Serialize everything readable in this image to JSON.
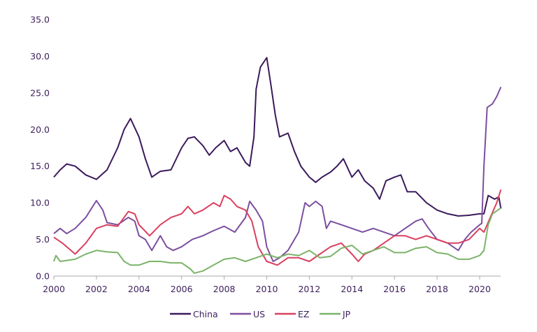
{
  "chart_data": {
    "type": "line",
    "title": "",
    "xlabel": "",
    "ylabel": "",
    "xlim": [
      2000,
      2021
    ],
    "ylim": [
      0,
      35
    ],
    "grid": false,
    "legend_position": "bottom",
    "x_ticks": [
      "2000",
      "2002",
      "2004",
      "2006",
      "2008",
      "2010",
      "2012",
      "2014",
      "2016",
      "2018",
      "2020"
    ],
    "y_ticks": [
      "0.0",
      "5.0",
      "10.0",
      "15.0",
      "20.0",
      "25.0",
      "30.0",
      "35.0"
    ],
    "series": [
      {
        "name": "China",
        "color": "#3b1a5c",
        "x": [
          2000,
          2000.3,
          2000.6,
          2001,
          2001.5,
          2002,
          2002.5,
          2003,
          2003.3,
          2003.6,
          2004,
          2004.3,
          2004.6,
          2005,
          2005.5,
          2006,
          2006.3,
          2006.6,
          2007,
          2007.3,
          2007.6,
          2008,
          2008.3,
          2008.6,
          2009,
          2009.2,
          2009.4,
          2009.5,
          2009.7,
          2010,
          2010.2,
          2010.4,
          2010.6,
          2011,
          2011.3,
          2011.6,
          2012,
          2012.3,
          2012.6,
          2013,
          2013.3,
          2013.6,
          2014,
          2014.3,
          2014.6,
          2015,
          2015.3,
          2015.6,
          2016,
          2016.3,
          2016.6,
          2017,
          2017.5,
          2018,
          2018.5,
          2019,
          2019.5,
          2020,
          2020.2,
          2020.4,
          2020.7,
          2020.9,
          2021
        ],
        "y": [
          13.5,
          14.5,
          15.3,
          15,
          13.8,
          13.2,
          14.5,
          17.5,
          20,
          21.5,
          19,
          16,
          13.5,
          14.3,
          14.5,
          17.5,
          18.8,
          19,
          17.8,
          16.5,
          17.5,
          18.5,
          17,
          17.5,
          15.5,
          15,
          19,
          25.5,
          28.5,
          29.8,
          26,
          22,
          19,
          19.5,
          17,
          15,
          13.5,
          12.8,
          13.5,
          14.2,
          15,
          16,
          13.5,
          14.5,
          13,
          12,
          10.5,
          13,
          13.5,
          13.8,
          11.5,
          11.5,
          10,
          9,
          8.5,
          8.2,
          8.3,
          8.5,
          8.5,
          11,
          10.5,
          10.8,
          9.2
        ]
      },
      {
        "name": "US",
        "color": "#7b4fa0",
        "x": [
          2000,
          2000.3,
          2000.6,
          2001,
          2001.5,
          2002,
          2002.3,
          2002.5,
          2003,
          2003.5,
          2003.8,
          2004,
          2004.3,
          2004.6,
          2005,
          2005.3,
          2005.6,
          2006,
          2006.5,
          2007,
          2007.5,
          2008,
          2008.5,
          2009,
          2009.2,
          2009.5,
          2009.8,
          2010,
          2010.3,
          2010.6,
          2011,
          2011.5,
          2011.8,
          2012,
          2012.3,
          2012.6,
          2012.8,
          2013,
          2013.5,
          2014,
          2014.5,
          2015,
          2015.5,
          2016,
          2016.5,
          2017,
          2017.3,
          2017.6,
          2018,
          2018.5,
          2019,
          2019.3,
          2019.6,
          2020,
          2020.1,
          2020.2,
          2020.35,
          2020.6,
          2020.8,
          2021
        ],
        "y": [
          5.8,
          6.5,
          5.8,
          6.5,
          8,
          10.3,
          9,
          7.3,
          7,
          8,
          7.5,
          5.5,
          5,
          3.5,
          5.5,
          4,
          3.5,
          4,
          5,
          5.5,
          6.2,
          6.8,
          6,
          8,
          10.2,
          9,
          7.5,
          4,
          2,
          2.5,
          3.5,
          6,
          10,
          9.5,
          10.2,
          9.5,
          6.5,
          7.5,
          7,
          6.5,
          6,
          6.5,
          6,
          5.5,
          6.5,
          7.5,
          7.8,
          6.5,
          5,
          4.5,
          3.5,
          5,
          6,
          7,
          7.2,
          15,
          23,
          23.5,
          24.5,
          25.8
        ]
      },
      {
        "name": "EZ",
        "color": "#d9405e",
        "x": [
          2000,
          2000.4,
          2000.8,
          2001,
          2001.5,
          2002,
          2002.5,
          2003,
          2003.5,
          2003.8,
          2004,
          2004.5,
          2005,
          2005.5,
          2006,
          2006.3,
          2006.6,
          2007,
          2007.5,
          2007.8,
          2008,
          2008.3,
          2008.6,
          2009,
          2009.3,
          2009.6,
          2010,
          2010.5,
          2011,
          2011.5,
          2012,
          2012.5,
          2013,
          2013.5,
          2014,
          2014.3,
          2014.6,
          2015,
          2015.5,
          2016,
          2016.5,
          2017,
          2017.5,
          2018,
          2018.5,
          2019,
          2019.5,
          2020,
          2020.2,
          2020.5,
          2020.8,
          2021
        ],
        "y": [
          5.3,
          4.5,
          3.5,
          3.0,
          4.5,
          6.5,
          7,
          6.8,
          8.8,
          8.5,
          7,
          5.5,
          7,
          8,
          8.5,
          9.5,
          8.5,
          9,
          10,
          9.5,
          11,
          10.5,
          9.5,
          9,
          7.5,
          4,
          2,
          1.5,
          2.5,
          2.5,
          2,
          3,
          4,
          4.5,
          3,
          2,
          3,
          3.5,
          4.5,
          5.5,
          5.5,
          5,
          5.5,
          5,
          4.5,
          4.5,
          5,
          6.5,
          6,
          8,
          10,
          11.8
        ]
      },
      {
        "name": "JP",
        "color": "#7cb36a",
        "x": [
          2000,
          2000.1,
          2000.3,
          2001,
          2001.5,
          2002,
          2002.5,
          2003,
          2003.3,
          2003.6,
          2004,
          2004.5,
          2005,
          2005.5,
          2006,
          2006.4,
          2006.6,
          2007,
          2007.5,
          2008,
          2008.5,
          2009,
          2009.5,
          2010,
          2010.5,
          2011,
          2011.5,
          2012,
          2012.5,
          2013,
          2013.5,
          2014,
          2014.5,
          2015,
          2015.5,
          2016,
          2016.5,
          2017,
          2017.5,
          2018,
          2018.5,
          2019,
          2019.5,
          2020,
          2020.2,
          2020.4,
          2020.6,
          2021
        ],
        "y": [
          2,
          2.8,
          2,
          2.3,
          3,
          3.5,
          3.3,
          3.2,
          2,
          1.5,
          1.5,
          2,
          2,
          1.8,
          1.8,
          1,
          0.4,
          0.7,
          1.5,
          2.3,
          2.5,
          2,
          2.5,
          3,
          2.5,
          3,
          2.8,
          3.5,
          2.5,
          2.7,
          3.8,
          4.2,
          3,
          3.5,
          4,
          3.2,
          3.2,
          3.8,
          4,
          3.2,
          3,
          2.3,
          2.3,
          2.8,
          3.5,
          7,
          8.5,
          9.3
        ]
      }
    ]
  }
}
